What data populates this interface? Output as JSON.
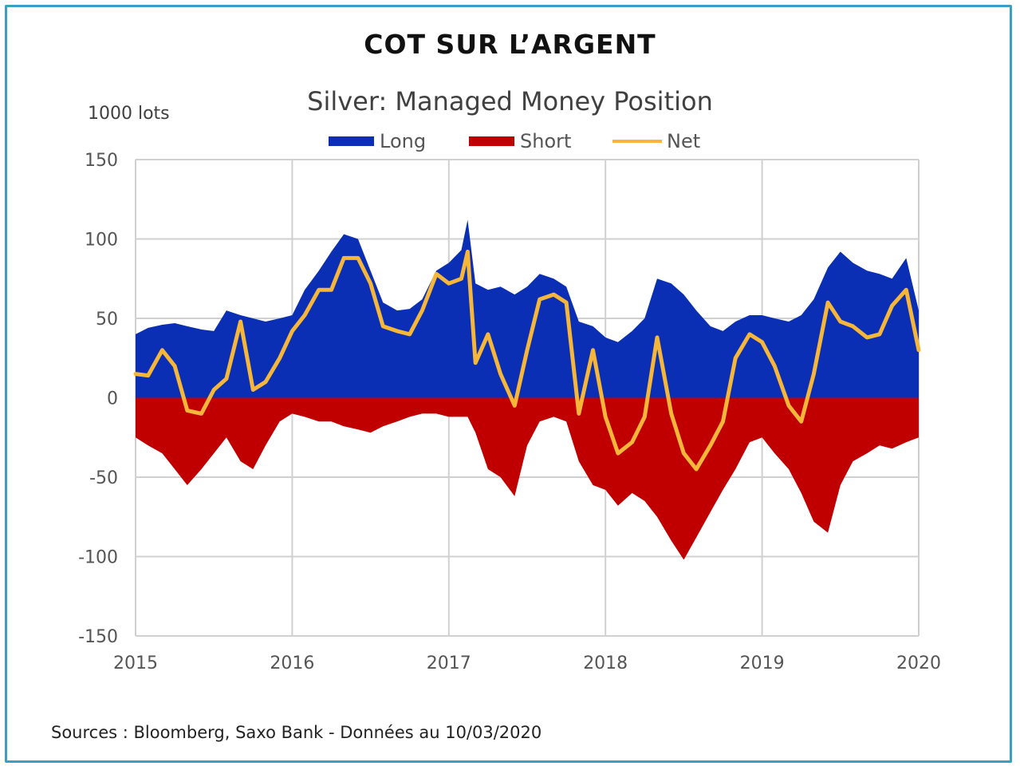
{
  "header": {
    "title": "COT SUR L’ARGENT"
  },
  "footer": {
    "source": "Sources : Bloomberg, Saxo Bank - Données au 10/03/2020"
  },
  "chart_data": {
    "type": "area",
    "title": "Silver: Managed Money Position",
    "ylabel": "1000 lots",
    "xlabel": "",
    "x_ticks": [
      "2015",
      "2016",
      "2017",
      "2018",
      "2019",
      "2020"
    ],
    "y_ticks": [
      "150",
      "100",
      "50",
      "0",
      "-50",
      "-100",
      "-150"
    ],
    "xlim": [
      2015.0,
      2020.0
    ],
    "ylim": [
      -150,
      150
    ],
    "grid": true,
    "legend_position": "top-center",
    "colors": {
      "long": "#0a2fb4",
      "short": "#c00000",
      "net": "#f5b63a",
      "grid": "#d0d0d0"
    },
    "x": [
      2015.0,
      2015.08,
      2015.17,
      2015.25,
      2015.33,
      2015.42,
      2015.5,
      2015.58,
      2015.67,
      2015.75,
      2015.83,
      2015.92,
      2016.0,
      2016.08,
      2016.17,
      2016.25,
      2016.33,
      2016.42,
      2016.5,
      2016.58,
      2016.67,
      2016.75,
      2016.83,
      2016.92,
      2017.0,
      2017.08,
      2017.12,
      2017.17,
      2017.25,
      2017.33,
      2017.42,
      2017.5,
      2017.58,
      2017.67,
      2017.75,
      2017.83,
      2017.92,
      2018.0,
      2018.08,
      2018.17,
      2018.25,
      2018.33,
      2018.42,
      2018.5,
      2018.58,
      2018.67,
      2018.75,
      2018.83,
      2018.92,
      2019.0,
      2019.08,
      2019.17,
      2019.25,
      2019.33,
      2019.42,
      2019.5,
      2019.58,
      2019.67,
      2019.75,
      2019.83,
      2019.92,
      2020.0
    ],
    "series": [
      {
        "name": "Long",
        "values": [
          40,
          44,
          46,
          47,
          45,
          43,
          42,
          55,
          52,
          50,
          48,
          50,
          52,
          68,
          80,
          92,
          103,
          100,
          80,
          60,
          55,
          56,
          62,
          80,
          85,
          93,
          112,
          72,
          68,
          70,
          65,
          70,
          78,
          75,
          70,
          48,
          45,
          38,
          35,
          42,
          50,
          75,
          72,
          65,
          55,
          45,
          42,
          48,
          52,
          52,
          50,
          48,
          52,
          62,
          82,
          92,
          85,
          80,
          78,
          75,
          88,
          55
        ]
      },
      {
        "name": "Short",
        "values": [
          -25,
          -30,
          -35,
          -45,
          -55,
          -45,
          -35,
          -25,
          -40,
          -45,
          -30,
          -15,
          -10,
          -12,
          -15,
          -15,
          -18,
          -20,
          -22,
          -18,
          -15,
          -12,
          -10,
          -10,
          -12,
          -12,
          -12,
          -22,
          -45,
          -50,
          -62,
          -30,
          -15,
          -12,
          -15,
          -40,
          -55,
          -58,
          -68,
          -60,
          -65,
          -75,
          -90,
          -102,
          -88,
          -72,
          -58,
          -45,
          -28,
          -25,
          -35,
          -45,
          -60,
          -78,
          -85,
          -55,
          -40,
          -35,
          -30,
          -32,
          -28,
          -25
        ]
      },
      {
        "name": "Net",
        "values": [
          15,
          14,
          30,
          20,
          -8,
          -10,
          5,
          12,
          48,
          5,
          10,
          25,
          42,
          52,
          68,
          68,
          88,
          88,
          72,
          45,
          42,
          40,
          55,
          78,
          72,
          75,
          92,
          22,
          40,
          15,
          -5,
          30,
          62,
          65,
          60,
          -10,
          30,
          -12,
          -35,
          -28,
          -12,
          38,
          -10,
          -35,
          -45,
          -30,
          -15,
          25,
          40,
          35,
          20,
          -5,
          -15,
          15,
          60,
          48,
          45,
          38,
          40,
          58,
          68,
          30
        ]
      }
    ]
  }
}
